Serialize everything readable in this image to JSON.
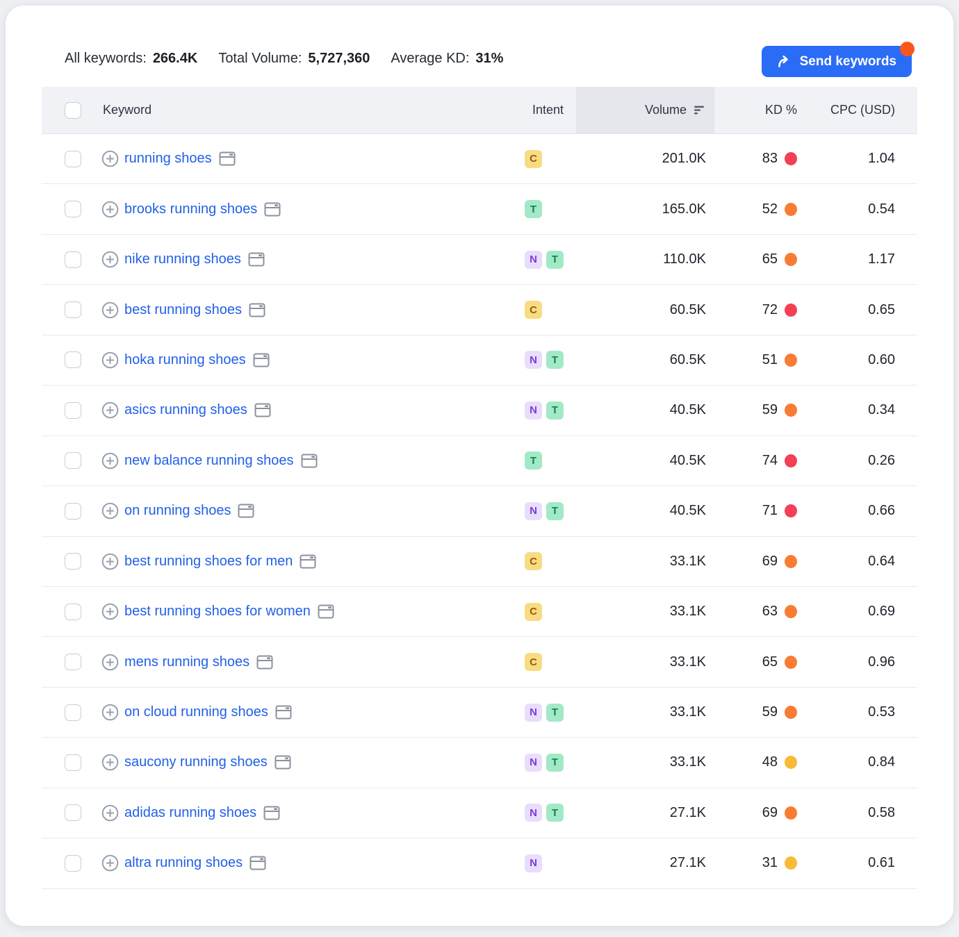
{
  "summary": {
    "all_keywords_label": "All keywords:",
    "all_keywords_value": "266.4K",
    "total_volume_label": "Total Volume:",
    "total_volume_value": "5,727,360",
    "average_kd_label": "Average KD:",
    "average_kd_value": "31%"
  },
  "send_button": {
    "label": "Send keywords",
    "color": "#2b6cf6",
    "notification_color": "#f9561e"
  },
  "table": {
    "headers": {
      "keyword": "Keyword",
      "intent": "Intent",
      "volume": "Volume",
      "kd": "KD %",
      "cpc": "CPC (USD)"
    },
    "sorted_by": "volume",
    "intent_types": {
      "C": {
        "bg": "#f8dc82",
        "fg": "#9a5a16"
      },
      "T": {
        "bg": "#a2eac6",
        "fg": "#15805b"
      },
      "N": {
        "bg": "#e9ddfb",
        "fg": "#7a3bdd"
      }
    },
    "kd_dot_colors": {
      "red": "#f43f54",
      "orange": "#f97c33",
      "yellow": "#f7bb37"
    },
    "rows": [
      {
        "keyword": "running shoes",
        "intents": [
          "C"
        ],
        "volume": "201.0K",
        "kd": "83",
        "kd_level": "red",
        "cpc": "1.04"
      },
      {
        "keyword": "brooks running shoes",
        "intents": [
          "T"
        ],
        "volume": "165.0K",
        "kd": "52",
        "kd_level": "orange",
        "cpc": "0.54"
      },
      {
        "keyword": "nike running shoes",
        "intents": [
          "N",
          "T"
        ],
        "volume": "110.0K",
        "kd": "65",
        "kd_level": "orange",
        "cpc": "1.17"
      },
      {
        "keyword": "best running shoes",
        "intents": [
          "C"
        ],
        "volume": "60.5K",
        "kd": "72",
        "kd_level": "red",
        "cpc": "0.65"
      },
      {
        "keyword": "hoka running shoes",
        "intents": [
          "N",
          "T"
        ],
        "volume": "60.5K",
        "kd": "51",
        "kd_level": "orange",
        "cpc": "0.60"
      },
      {
        "keyword": "asics running shoes",
        "intents": [
          "N",
          "T"
        ],
        "volume": "40.5K",
        "kd": "59",
        "kd_level": "orange",
        "cpc": "0.34"
      },
      {
        "keyword": "new balance running shoes",
        "intents": [
          "T"
        ],
        "volume": "40.5K",
        "kd": "74",
        "kd_level": "red",
        "cpc": "0.26"
      },
      {
        "keyword": "on running shoes",
        "intents": [
          "N",
          "T"
        ],
        "volume": "40.5K",
        "kd": "71",
        "kd_level": "red",
        "cpc": "0.66"
      },
      {
        "keyword": "best running shoes for men",
        "intents": [
          "C"
        ],
        "volume": "33.1K",
        "kd": "69",
        "kd_level": "orange",
        "cpc": "0.64"
      },
      {
        "keyword": "best running shoes for women",
        "intents": [
          "C"
        ],
        "volume": "33.1K",
        "kd": "63",
        "kd_level": "orange",
        "cpc": "0.69"
      },
      {
        "keyword": "mens running shoes",
        "intents": [
          "C"
        ],
        "volume": "33.1K",
        "kd": "65",
        "kd_level": "orange",
        "cpc": "0.96"
      },
      {
        "keyword": "on cloud running shoes",
        "intents": [
          "N",
          "T"
        ],
        "volume": "33.1K",
        "kd": "59",
        "kd_level": "orange",
        "cpc": "0.53"
      },
      {
        "keyword": "saucony running shoes",
        "intents": [
          "N",
          "T"
        ],
        "volume": "33.1K",
        "kd": "48",
        "kd_level": "yellow",
        "cpc": "0.84"
      },
      {
        "keyword": "adidas running shoes",
        "intents": [
          "N",
          "T"
        ],
        "volume": "27.1K",
        "kd": "69",
        "kd_level": "orange",
        "cpc": "0.58"
      },
      {
        "keyword": "altra running shoes",
        "intents": [
          "N"
        ],
        "volume": "27.1K",
        "kd": "31",
        "kd_level": "yellow",
        "cpc": "0.61"
      }
    ]
  }
}
